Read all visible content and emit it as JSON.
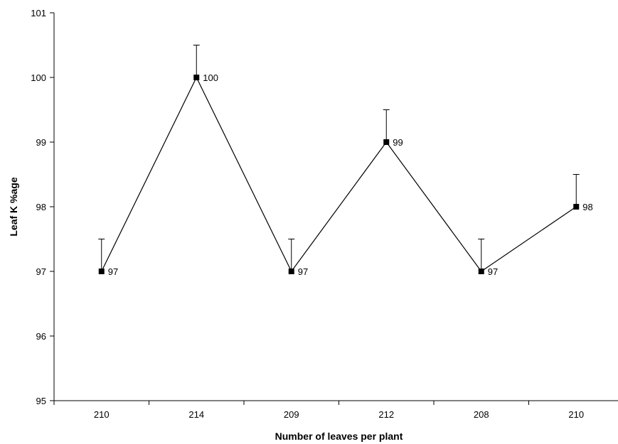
{
  "chart_data": {
    "type": "line",
    "title": "",
    "xlabel": "Number of leaves per plant",
    "ylabel": "Leaf K %age",
    "categories": [
      "210",
      "214",
      "209",
      "212",
      "208",
      "210"
    ],
    "series": [
      {
        "values": [
          97,
          100,
          97,
          99,
          97,
          98
        ],
        "error_plus": [
          0.5,
          0.5,
          0.5,
          0.5,
          0.5,
          0.5
        ],
        "data_labels": [
          "97",
          "100",
          "97",
          "99",
          "97",
          "98"
        ]
      }
    ],
    "ylim": [
      95,
      101
    ],
    "yticks": [
      "95",
      "96",
      "97",
      "98",
      "99",
      "100",
      "101"
    ],
    "grid": false,
    "legend": "none",
    "line_color": "#000000",
    "marker": "square"
  }
}
